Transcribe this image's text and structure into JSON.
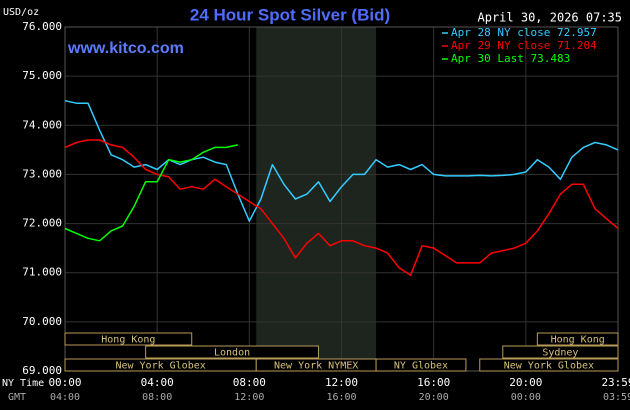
{
  "chart_data": {
    "type": "line",
    "title": "24 Hour Spot Silver (Bid)",
    "y_label": "USD/oz",
    "timestamp": "April 30, 2026 07:35",
    "watermark": "www.kitco.com",
    "x_row_labels": [
      "NY Time",
      "GMT"
    ],
    "x": [
      0,
      0.5,
      1,
      1.5,
      2,
      2.5,
      3,
      3.5,
      4,
      4.5,
      5,
      5.5,
      6,
      6.5,
      7,
      7.5,
      8,
      8.5,
      9,
      9.5,
      10,
      10.5,
      11,
      11.5,
      12,
      12.5,
      13,
      13.5,
      14,
      14.5,
      15,
      15.5,
      16,
      16.5,
      17,
      17.5,
      18,
      18.5,
      19,
      19.5,
      20,
      20.5,
      21,
      21.5,
      22,
      22.5,
      23,
      23.5,
      24
    ],
    "series": [
      {
        "name": "Apr 28 NY close 72.957",
        "color": "#33ccff",
        "values": [
          74.5,
          74.45,
          74.45,
          73.9,
          73.4,
          73.3,
          73.15,
          73.2,
          73.1,
          73.3,
          73.2,
          73.3,
          73.35,
          73.25,
          73.2,
          72.6,
          72.05,
          72.5,
          73.2,
          72.8,
          72.5,
          72.6,
          72.85,
          72.45,
          72.75,
          73.0,
          73.0,
          73.3,
          73.15,
          73.2,
          73.1,
          73.2,
          73.0,
          72.97,
          72.97,
          72.97,
          72.98,
          72.97,
          72.98,
          73.0,
          73.05,
          73.3,
          73.15,
          72.9,
          73.35,
          73.55,
          73.65,
          73.6,
          73.5
        ]
      },
      {
        "name": "Apr 29 NY close 71.204",
        "color": "#ff0000",
        "values": [
          73.55,
          73.65,
          73.7,
          73.7,
          73.6,
          73.55,
          73.35,
          73.1,
          73.0,
          72.95,
          72.7,
          72.75,
          72.7,
          72.9,
          72.75,
          72.6,
          72.45,
          72.3,
          72.0,
          71.7,
          71.3,
          71.6,
          71.8,
          71.55,
          71.65,
          71.65,
          71.55,
          71.5,
          71.4,
          71.1,
          70.95,
          71.55,
          71.5,
          71.35,
          71.2,
          71.2,
          71.2,
          71.4,
          71.45,
          71.5,
          71.6,
          71.85,
          72.2,
          72.6,
          72.8,
          72.8,
          72.3,
          72.1,
          71.9
        ]
      },
      {
        "name": "Apr 30 Last 73.483",
        "color": "#00ff00",
        "values": [
          71.9,
          71.8,
          71.7,
          71.65,
          71.85,
          71.95,
          72.35,
          72.85,
          72.85,
          73.3,
          73.25,
          73.3,
          73.45,
          73.55,
          73.55,
          73.6,
          null,
          null,
          null,
          null,
          null,
          null,
          null,
          null,
          null,
          null,
          null,
          null,
          null,
          null,
          null,
          null,
          null,
          null,
          null,
          null,
          null,
          null,
          null,
          null,
          null,
          null,
          null,
          null,
          null,
          null,
          null,
          null,
          null
        ]
      }
    ],
    "xlim": [
      0,
      24
    ],
    "xticks": [
      {
        "value": 0,
        "label": "00:00"
      },
      {
        "value": 4,
        "label": "04:00"
      },
      {
        "value": 8,
        "label": "08:00"
      },
      {
        "value": 12,
        "label": "12:00"
      },
      {
        "value": 16,
        "label": "16:00"
      },
      {
        "value": 20,
        "label": "20:00"
      },
      {
        "value": 24,
        "label": "23:59"
      }
    ],
    "gmt_labels": [
      "04:00",
      "08:00",
      "12:00",
      "16:00",
      "20:00",
      "00:00",
      "03:59"
    ],
    "ylim": [
      69,
      76
    ],
    "yticks": [
      {
        "value": 69,
        "label": "69.000"
      },
      {
        "value": 70,
        "label": "70.000"
      },
      {
        "value": 71,
        "label": "71.000"
      },
      {
        "value": 72,
        "label": "72.000"
      },
      {
        "value": 73,
        "label": "73.000"
      },
      {
        "value": 74,
        "label": "74.000"
      },
      {
        "value": 75,
        "label": "75.000"
      },
      {
        "value": 76,
        "label": "76.000"
      }
    ],
    "grid": true,
    "sessions": [
      {
        "label": "Hong Kong",
        "start": 0,
        "end": 5.5,
        "row": 0
      },
      {
        "label": "London",
        "start": 3.5,
        "end": 11,
        "row": 1
      },
      {
        "label": "New York Globex",
        "start": 0,
        "end": 8.3,
        "row": 2
      },
      {
        "label": "New York NYMEX",
        "start": 8.3,
        "end": 13.5,
        "row": 2
      },
      {
        "label": "NY Globex",
        "start": 13.5,
        "end": 17.4,
        "row": 2
      },
      {
        "label": "Hong Kong",
        "start": 20.5,
        "end": 24,
        "row": 0
      },
      {
        "label": "Sydney",
        "start": 19,
        "end": 24,
        "row": 1
      },
      {
        "label": "New York Globex",
        "start": 18,
        "end": 24,
        "row": 2
      }
    ],
    "shaded_session": 3
  }
}
